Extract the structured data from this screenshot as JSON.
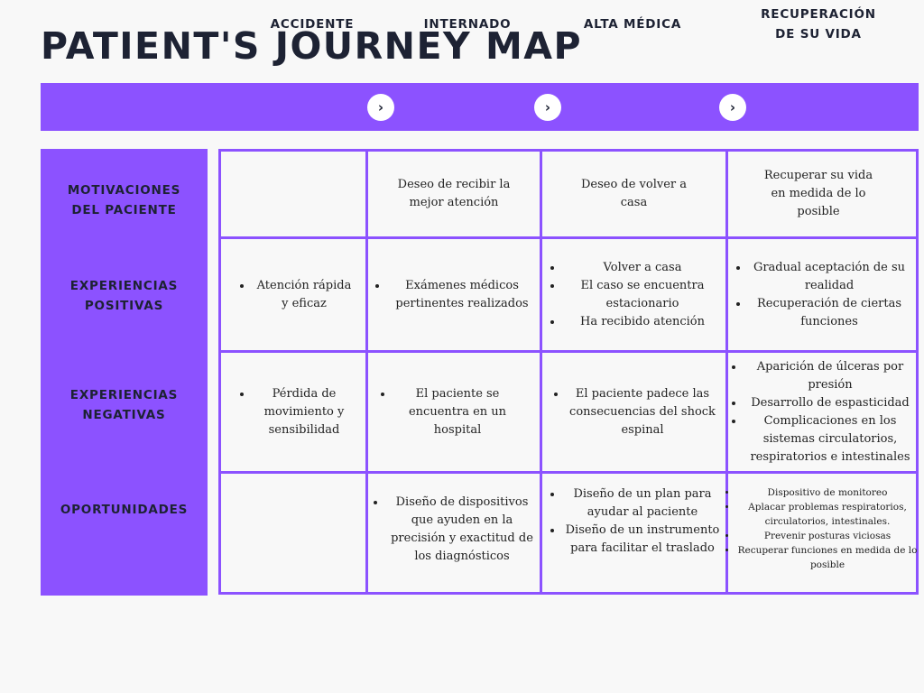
{
  "title": "PATIENT'S JOURNEY MAP",
  "colors": {
    "accent": "#8c52ff",
    "text": "#1d2233",
    "background": "#f8f8f8"
  },
  "stages": [
    {
      "label": "ACCIDENTE"
    },
    {
      "label": "INTERNADO"
    },
    {
      "label": "ALTA MÉDICA"
    },
    {
      "label": "RECUPERACIÓN DE SU VIDA",
      "lines": [
        "RECUPERACIÓN",
        "DE SU VIDA"
      ]
    }
  ],
  "stage_arrow_icon": "chevron-right-icon",
  "rows": [
    {
      "label_lines": [
        "MOTIVACIONES",
        "DEL PACIENTE"
      ]
    },
    {
      "label_lines": [
        "EXPERIENCIAS",
        "POSITIVAS"
      ]
    },
    {
      "label_lines": [
        "EXPERIENCIAS",
        "NEGATIVAS"
      ]
    },
    {
      "label_lines": [
        "OPORTUNIDADES"
      ]
    }
  ],
  "cells": {
    "motivaciones": {
      "accidente": "",
      "internado": [
        "Deseo de recibir la",
        "mejor atención"
      ],
      "alta": [
        "Deseo de volver a",
        "casa"
      ],
      "recuperacion": [
        "Recuperar su vida",
        "en medida de lo",
        "posible"
      ]
    },
    "positivas": {
      "accidente": [
        "Atención rápida y eficaz"
      ],
      "internado": [
        "Exámenes médicos pertinentes realizados"
      ],
      "alta": [
        "Volver a casa",
        "El caso se encuentra estacionario",
        "Ha recibido atención"
      ],
      "recuperacion": [
        "Gradual aceptación de su realidad",
        "Recuperación de ciertas funciones"
      ]
    },
    "negativas": {
      "accidente": [
        "Pérdida de movimiento y sensibilidad"
      ],
      "internado": [
        "El paciente se encuentra en un hospital"
      ],
      "alta": [
        "El paciente padece las consecuencias del shock espinal"
      ],
      "recuperacion": [
        "Aparición de úlceras por presión",
        "Desarrollo de espasticidad",
        "Complicaciones en los sistemas circulatorios, respiratorios e intestinales"
      ]
    },
    "oportunidades": {
      "accidente": "",
      "internado": [
        "Diseño de dispositivos que ayuden en la precisión y exactitud de los diagnósticos"
      ],
      "alta": [
        "Diseño de un plan para ayudar al paciente",
        "Diseño de un instrumento para facilitar el traslado"
      ],
      "recuperacion": [
        "Dispositivo de monitoreo",
        "Aplacar problemas respiratorios, circulatorios, intestinales.",
        "Prevenir posturas viciosas",
        "Recuperar funciones en medida de lo posible"
      ]
    }
  }
}
